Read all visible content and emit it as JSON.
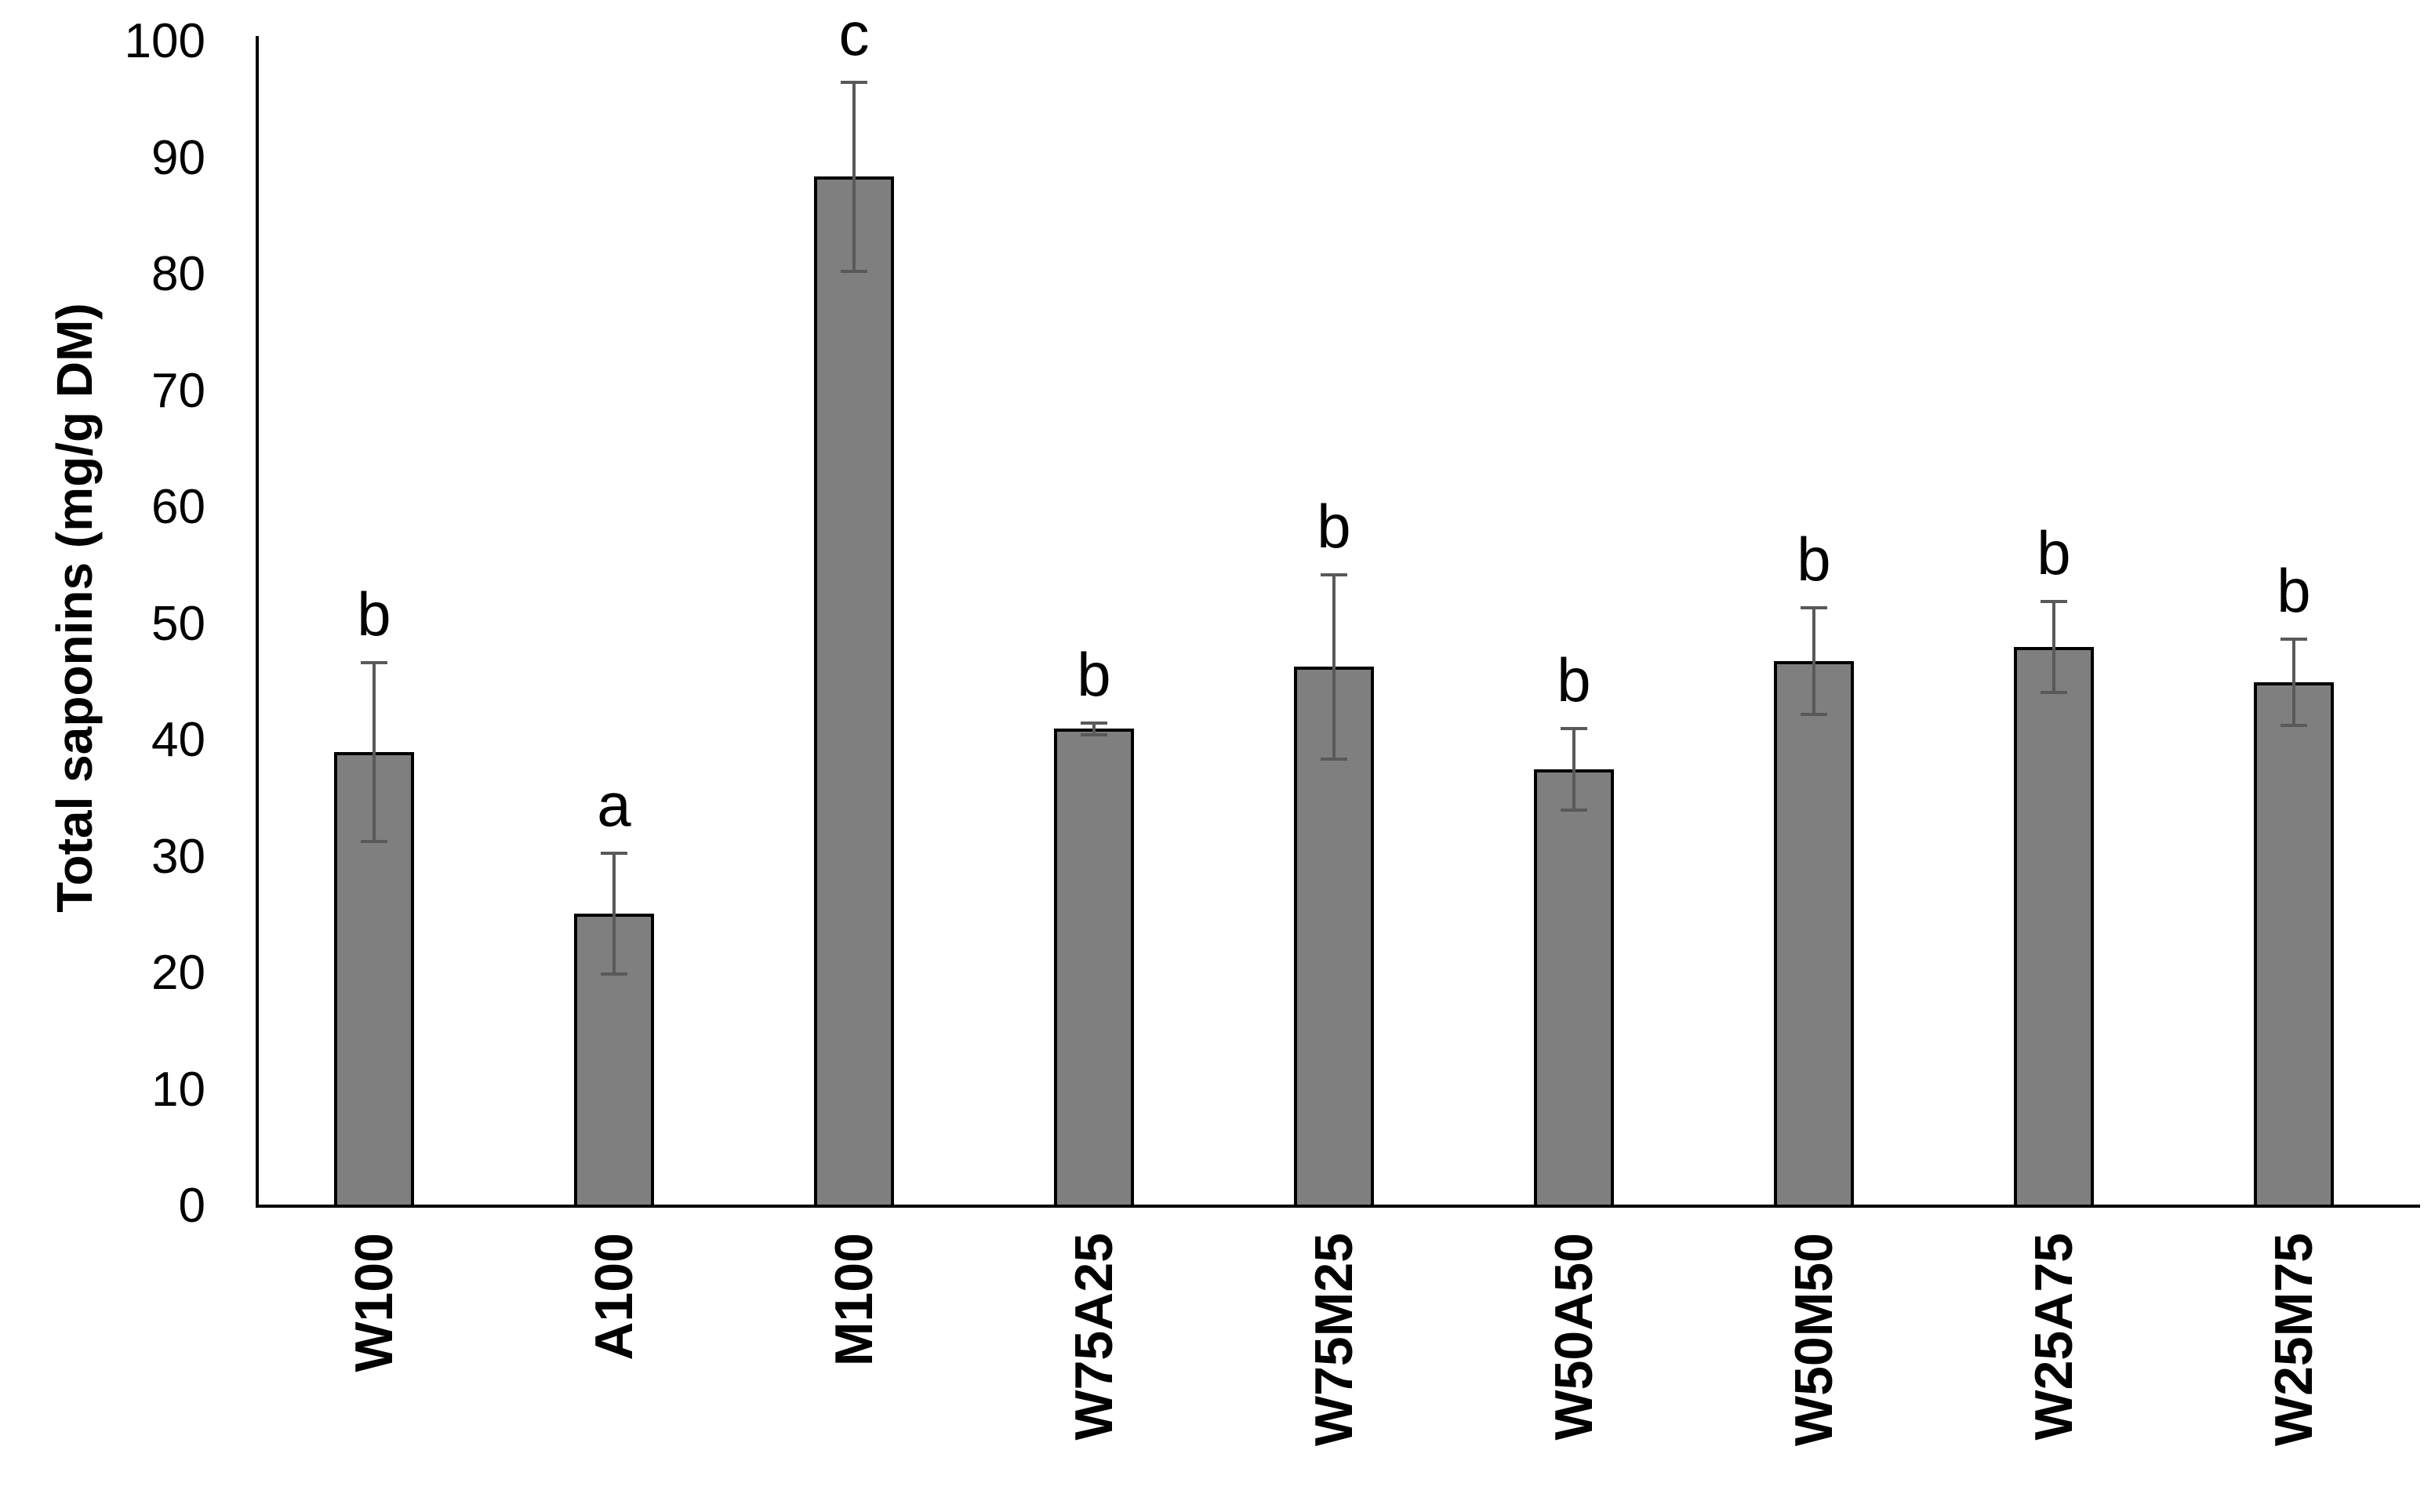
{
  "chart_data": {
    "type": "bar",
    "title": "",
    "xlabel": "",
    "ylabel": "Total saponins (mg/g DM)",
    "ylim": [
      0,
      100
    ],
    "yticks": [
      0,
      10,
      20,
      30,
      40,
      50,
      60,
      70,
      80,
      90,
      100
    ],
    "grid": false,
    "legend": false,
    "bar_fill_color": "#7f7f7f",
    "bar_border_color": "#000000",
    "error_bar_color": "#595959",
    "categories": [
      "W100",
      "A100",
      "M100",
      "W75A25",
      "W75M25",
      "W50A50",
      "W50M50",
      "W25A75",
      "W25M75"
    ],
    "series": [
      {
        "name": "Total saponins",
        "values": [
          39.0,
          25.1,
          88.4,
          41.0,
          46.3,
          37.5,
          46.8,
          48.0,
          45.0
        ],
        "errors": [
          7.7,
          5.2,
          8.1,
          0.5,
          7.9,
          3.5,
          4.6,
          3.9,
          3.7
        ],
        "significance_letters": [
          "b",
          "a",
          "c",
          "b",
          "b",
          "b",
          "b",
          "b",
          "b"
        ]
      }
    ]
  }
}
